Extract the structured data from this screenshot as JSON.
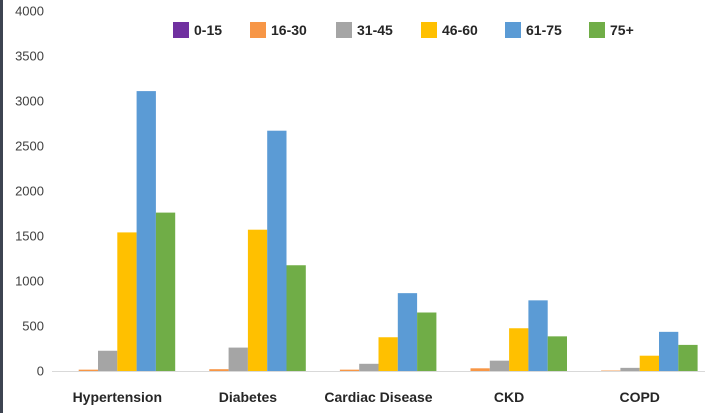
{
  "chart_data": {
    "type": "bar",
    "title": "",
    "xlabel": "",
    "ylabel": "",
    "ylim": [
      0,
      4000
    ],
    "yticks": [
      0,
      500,
      1000,
      1500,
      2000,
      2500,
      3000,
      3500,
      4000
    ],
    "grid": false,
    "legend_position": "top",
    "categories": [
      "Hypertension",
      "Diabetes",
      "Cardiac Disease",
      "CKD",
      "COPD"
    ],
    "series": [
      {
        "name": "0-15",
        "color": "#7030a0",
        "values": [
          0,
          0,
          0,
          0,
          0
        ]
      },
      {
        "name": "16-30",
        "color": "#f79646",
        "values": [
          15,
          20,
          15,
          30,
          5
        ]
      },
      {
        "name": "31-45",
        "color": "#a5a5a5",
        "values": [
          225,
          260,
          80,
          115,
          35
        ]
      },
      {
        "name": "46-60",
        "color": "#ffc000",
        "values": [
          1540,
          1570,
          375,
          475,
          170
        ]
      },
      {
        "name": "61-75",
        "color": "#5b9bd5",
        "values": [
          3110,
          2670,
          865,
          785,
          435
        ]
      },
      {
        "name": "75+",
        "color": "#70ad47",
        "values": [
          1760,
          1175,
          650,
          385,
          290
        ]
      }
    ]
  }
}
